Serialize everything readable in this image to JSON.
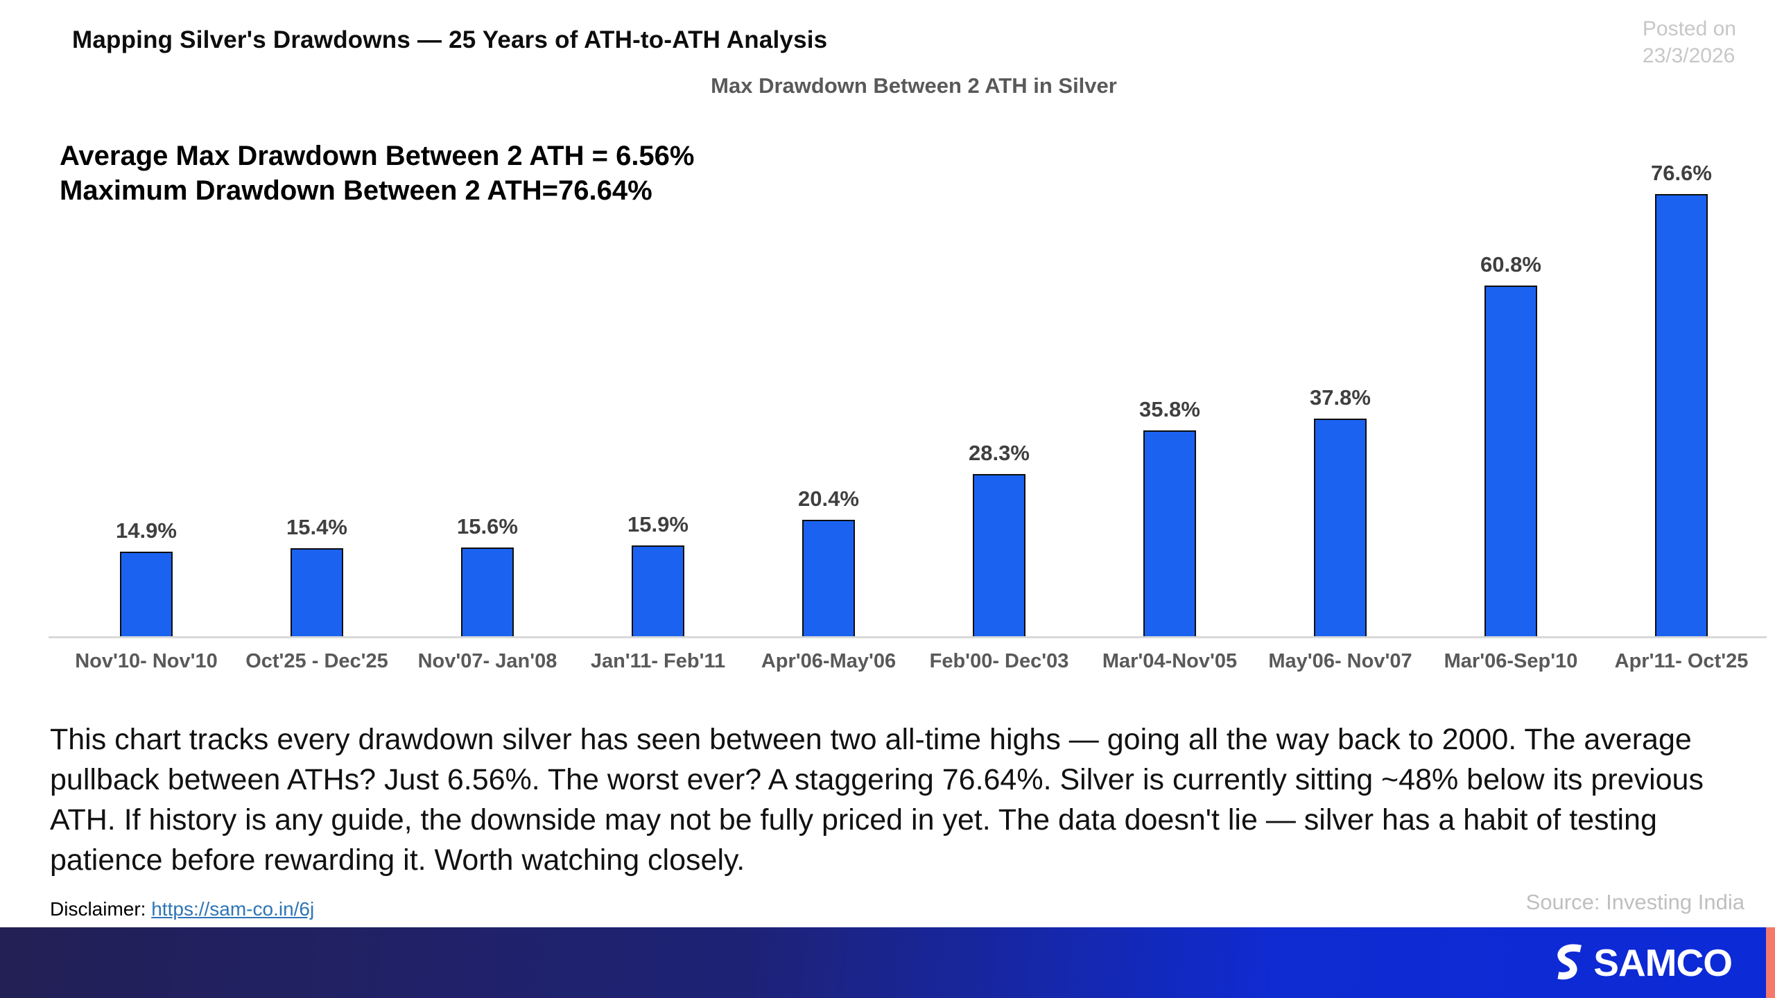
{
  "header": {
    "title": "Mapping Silver's Drawdowns — 25 Years of ATH-to-ATH Analysis",
    "posted_on_line1": "Posted on",
    "posted_on_line2": "23/3/2026"
  },
  "chart_data": {
    "type": "bar",
    "title": "Max Drawdown Between 2 ATH in Silver",
    "categories": [
      "Nov'10- Nov'10",
      "Oct'25 - Dec'25",
      "Nov'07- Jan'08",
      "Jan'11- Feb'11",
      "Apr'06-May'06",
      "Feb'00- Dec'03",
      "Mar'04-Nov'05",
      "May'06- Nov'07",
      "Mar'06-Sep'10",
      "Apr'11- Oct'25"
    ],
    "values": [
      14.9,
      15.4,
      15.6,
      15.9,
      20.4,
      28.3,
      35.8,
      37.8,
      60.8,
      76.6
    ],
    "value_labels": [
      "14.9%",
      "15.4%",
      "15.6%",
      "15.9%",
      "20.4%",
      "28.3%",
      "35.8%",
      "37.8%",
      "60.8%",
      "76.6%"
    ],
    "annotations": {
      "0": "Average Max Drawdown Between 2 ATH = 6.56%",
      "1": "Maximum Drawdown Between 2 ATH=76.64%"
    },
    "xlabel": "",
    "ylabel": "",
    "ylim": [
      0,
      80
    ],
    "grid": false,
    "legend": "none",
    "bar_color": "#1b62f1",
    "bar_border_color": "#0d0d0d",
    "label_color": "#3f3f3f",
    "axis_line_color": "#d9d9d9"
  },
  "body": {
    "paragraph": "This chart tracks every drawdown silver has seen between two all-time highs — going all the way back to 2000. The average pullback between ATHs? Just 6.56%. The worst ever? A staggering 76.64%. Silver is currently sitting ~48% below its previous ATH. If history is any guide, the downside may not be fully priced in yet. The data doesn't lie — silver has a habit of testing patience before rewarding it. Worth watching closely."
  },
  "footer_meta": {
    "disclaimer_label": "Disclaimer: ",
    "disclaimer_link": "https://sam-co.in/6j",
    "source": "Source: Investing India"
  },
  "brand_bar": {
    "logo_text": "SAMCO",
    "gradient_left": "#232055",
    "gradient_right": "#0c2ad6",
    "accent_color": "#f4796b"
  }
}
